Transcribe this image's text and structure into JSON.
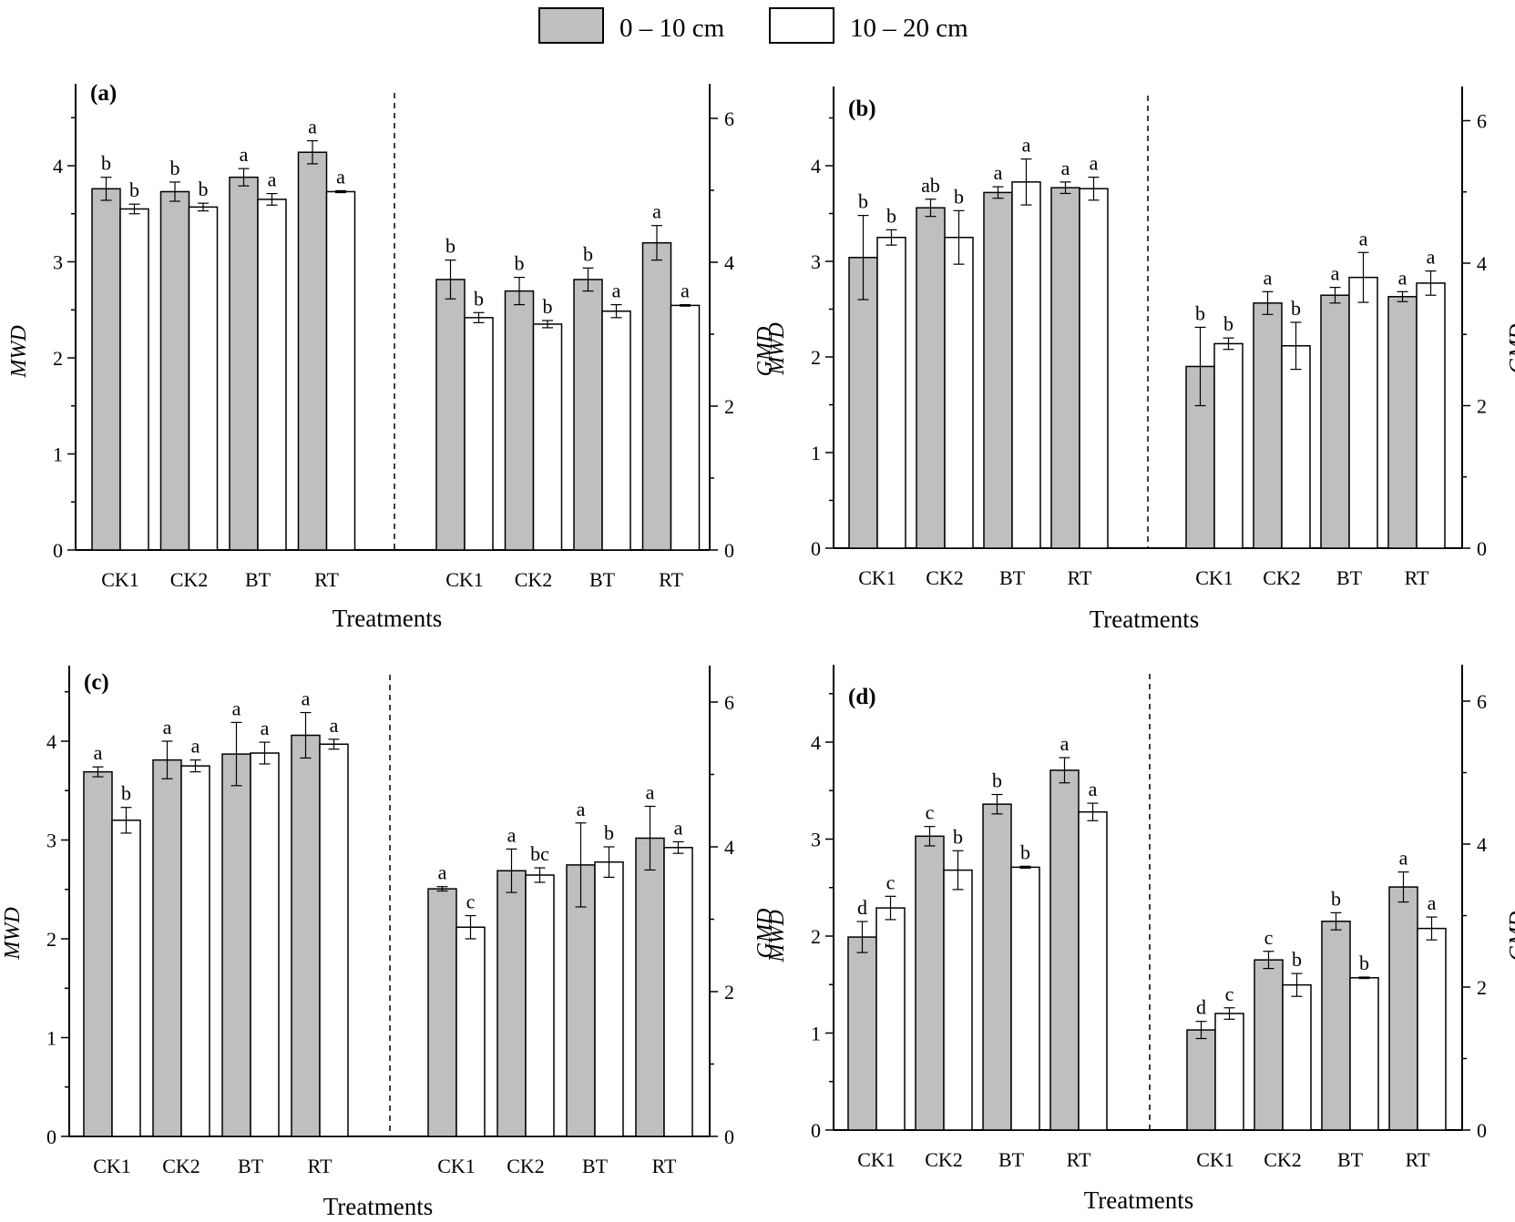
{
  "legend": {
    "entries": [
      {
        "label": "0 – 10 cm",
        "color": "#bfbfbf"
      },
      {
        "label": "10 – 20 cm",
        "color": "#ffffff"
      }
    ],
    "placement": "top-center"
  },
  "colors": {
    "series1": "#bfbfbf",
    "series2": "#ffffff",
    "stroke": "#000000"
  },
  "chart_data": [
    {
      "type": "bar",
      "panel_label": "(a)",
      "xlabel": "Treatments",
      "ylabel_left": "MWD",
      "ylabel_right": "GMD",
      "ylim_left": [
        0,
        4.8
      ],
      "ylim_right": [
        0,
        6.5
      ],
      "yticks_left": [
        0,
        1,
        2,
        3,
        4
      ],
      "yticks_right": [
        0,
        2,
        4,
        6
      ],
      "groups": [
        {
          "metric": "MWD",
          "axis": "left",
          "categories": [
            "CK1",
            "CK2",
            "BT",
            "RT"
          ],
          "series": [
            {
              "name": "0 – 10 cm",
              "values": [
                3.76,
                3.73,
                3.88,
                4.14
              ],
              "errors": [
                0.12,
                0.1,
                0.09,
                0.12
              ],
              "letters": [
                "b",
                "b",
                "a",
                "a"
              ]
            },
            {
              "name": "10 – 20 cm",
              "values": [
                3.55,
                3.57,
                3.65,
                3.73
              ],
              "errors": [
                0.05,
                0.04,
                0.06,
                0.01
              ],
              "letters": [
                "b",
                "b",
                "a",
                "a"
              ]
            }
          ]
        },
        {
          "metric": "GMD",
          "axis": "right",
          "categories": [
            "CK1",
            "CK2",
            "BT",
            "RT"
          ],
          "series": [
            {
              "name": "0 – 10 cm",
              "values": [
                3.76,
                3.6,
                3.76,
                4.27
              ],
              "errors": [
                0.27,
                0.19,
                0.16,
                0.24
              ],
              "letters": [
                "b",
                "b",
                "b",
                "a"
              ]
            },
            {
              "name": "10 – 20 cm",
              "values": [
                3.23,
                3.14,
                3.32,
                3.4
              ],
              "errors": [
                0.07,
                0.05,
                0.09,
                0.01
              ],
              "letters": [
                "b",
                "b",
                "a",
                "a"
              ]
            }
          ]
        }
      ]
    },
    {
      "type": "bar",
      "panel_label": "(b)",
      "xlabel": "Treatments",
      "ylabel_left": "MWD",
      "ylabel_right": "GMD",
      "ylim_left": [
        0,
        4.8
      ],
      "ylim_right": [
        0,
        6.5
      ],
      "yticks_left": [
        0,
        1,
        2,
        3,
        4
      ],
      "yticks_right": [
        0,
        2,
        4,
        6
      ],
      "groups": [
        {
          "metric": "MWD",
          "axis": "left",
          "categories": [
            "CK1",
            "CK2",
            "BT",
            "RT"
          ],
          "series": [
            {
              "name": "0 – 10 cm",
              "values": [
                3.04,
                3.56,
                3.72,
                3.77
              ],
              "errors": [
                0.44,
                0.09,
                0.06,
                0.06
              ],
              "letters": [
                "b",
                "ab",
                "a",
                "a"
              ]
            },
            {
              "name": "10 – 20 cm",
              "values": [
                3.25,
                3.25,
                3.83,
                3.76
              ],
              "errors": [
                0.08,
                0.28,
                0.24,
                0.12
              ],
              "letters": [
                "b",
                "b",
                "a",
                "a"
              ]
            }
          ]
        },
        {
          "metric": "GMD",
          "axis": "right",
          "categories": [
            "CK1",
            "CK2",
            "BT",
            "RT"
          ],
          "series": [
            {
              "name": "0 – 10 cm",
              "values": [
                2.55,
                3.44,
                3.55,
                3.53
              ],
              "errors": [
                0.55,
                0.16,
                0.11,
                0.07
              ],
              "letters": [
                "b",
                "a",
                "a",
                "a"
              ]
            },
            {
              "name": "10 – 20 cm",
              "values": [
                2.87,
                2.84,
                3.8,
                3.72
              ],
              "errors": [
                0.08,
                0.33,
                0.35,
                0.17
              ],
              "letters": [
                "b",
                "b",
                "a",
                "a"
              ]
            }
          ]
        }
      ]
    },
    {
      "type": "bar",
      "panel_label": "(c)",
      "xlabel": "Treatments",
      "ylabel_left": "MWD",
      "ylabel_right": "GMD",
      "ylim_left": [
        0,
        4.8
      ],
      "ylim_right": [
        0,
        6.5
      ],
      "yticks_left": [
        0,
        1,
        2,
        3,
        4
      ],
      "yticks_right": [
        0,
        2,
        4,
        6
      ],
      "groups": [
        {
          "metric": "MWD",
          "axis": "left",
          "categories": [
            "CK1",
            "CK2",
            "BT",
            "RT"
          ],
          "series": [
            {
              "name": "0 – 10 cm",
              "values": [
                3.69,
                3.81,
                3.87,
                4.06
              ],
              "errors": [
                0.05,
                0.19,
                0.32,
                0.23
              ],
              "letters": [
                "a",
                "a",
                "a",
                "a"
              ]
            },
            {
              "name": "10 – 20 cm",
              "values": [
                3.2,
                3.75,
                3.88,
                3.97
              ],
              "errors": [
                0.13,
                0.06,
                0.11,
                0.05
              ],
              "letters": [
                "b",
                "a",
                "a",
                "a"
              ]
            }
          ]
        },
        {
          "metric": "GMD",
          "axis": "right",
          "categories": [
            "CK1",
            "CK2",
            "BT",
            "RT"
          ],
          "series": [
            {
              "name": "0 – 10 cm",
              "values": [
                3.42,
                3.67,
                3.75,
                4.12
              ],
              "errors": [
                0.03,
                0.3,
                0.58,
                0.44
              ],
              "letters": [
                "a",
                "a",
                "a",
                "a"
              ]
            },
            {
              "name": "10 – 20 cm",
              "values": [
                2.89,
                3.61,
                3.79,
                3.99
              ],
              "errors": [
                0.16,
                0.1,
                0.21,
                0.08
              ],
              "letters": [
                "c",
                "bc",
                "b",
                "a"
              ]
            }
          ]
        }
      ]
    },
    {
      "type": "bar",
      "panel_label": "(d)",
      "xlabel": "Treatments",
      "ylabel_left": "MWD",
      "ylabel_right": "GMD",
      "ylim_left": [
        0,
        4.8
      ],
      "ylim_right": [
        0,
        6.5
      ],
      "yticks_left": [
        0,
        1,
        2,
        3,
        4
      ],
      "yticks_right": [
        0,
        2,
        4,
        6
      ],
      "groups": [
        {
          "metric": "MWD",
          "axis": "left",
          "categories": [
            "CK1",
            "CK2",
            "BT",
            "RT"
          ],
          "series": [
            {
              "name": "0 – 10 cm",
              "values": [
                1.99,
                3.03,
                3.36,
                3.71
              ],
              "errors": [
                0.16,
                0.1,
                0.1,
                0.13
              ],
              "letters": [
                "d",
                "c",
                "b",
                "a"
              ]
            },
            {
              "name": "10 – 20 cm",
              "values": [
                2.29,
                2.68,
                2.71,
                3.28
              ],
              "errors": [
                0.12,
                0.2,
                0.01,
                0.09
              ],
              "letters": [
                "c",
                "b",
                "b",
                "a"
              ]
            }
          ]
        },
        {
          "metric": "GMD",
          "axis": "right",
          "categories": [
            "CK1",
            "CK2",
            "BT",
            "RT"
          ],
          "series": [
            {
              "name": "0 – 10 cm",
              "values": [
                1.4,
                2.38,
                2.92,
                3.4
              ],
              "errors": [
                0.12,
                0.12,
                0.12,
                0.21
              ],
              "letters": [
                "d",
                "c",
                "b",
                "a"
              ]
            },
            {
              "name": "10 – 20 cm",
              "values": [
                1.63,
                2.03,
                2.13,
                2.82
              ],
              "errors": [
                0.08,
                0.16,
                0.01,
                0.16
              ],
              "letters": [
                "c",
                "b",
                "b",
                "a"
              ]
            }
          ]
        }
      ]
    }
  ]
}
